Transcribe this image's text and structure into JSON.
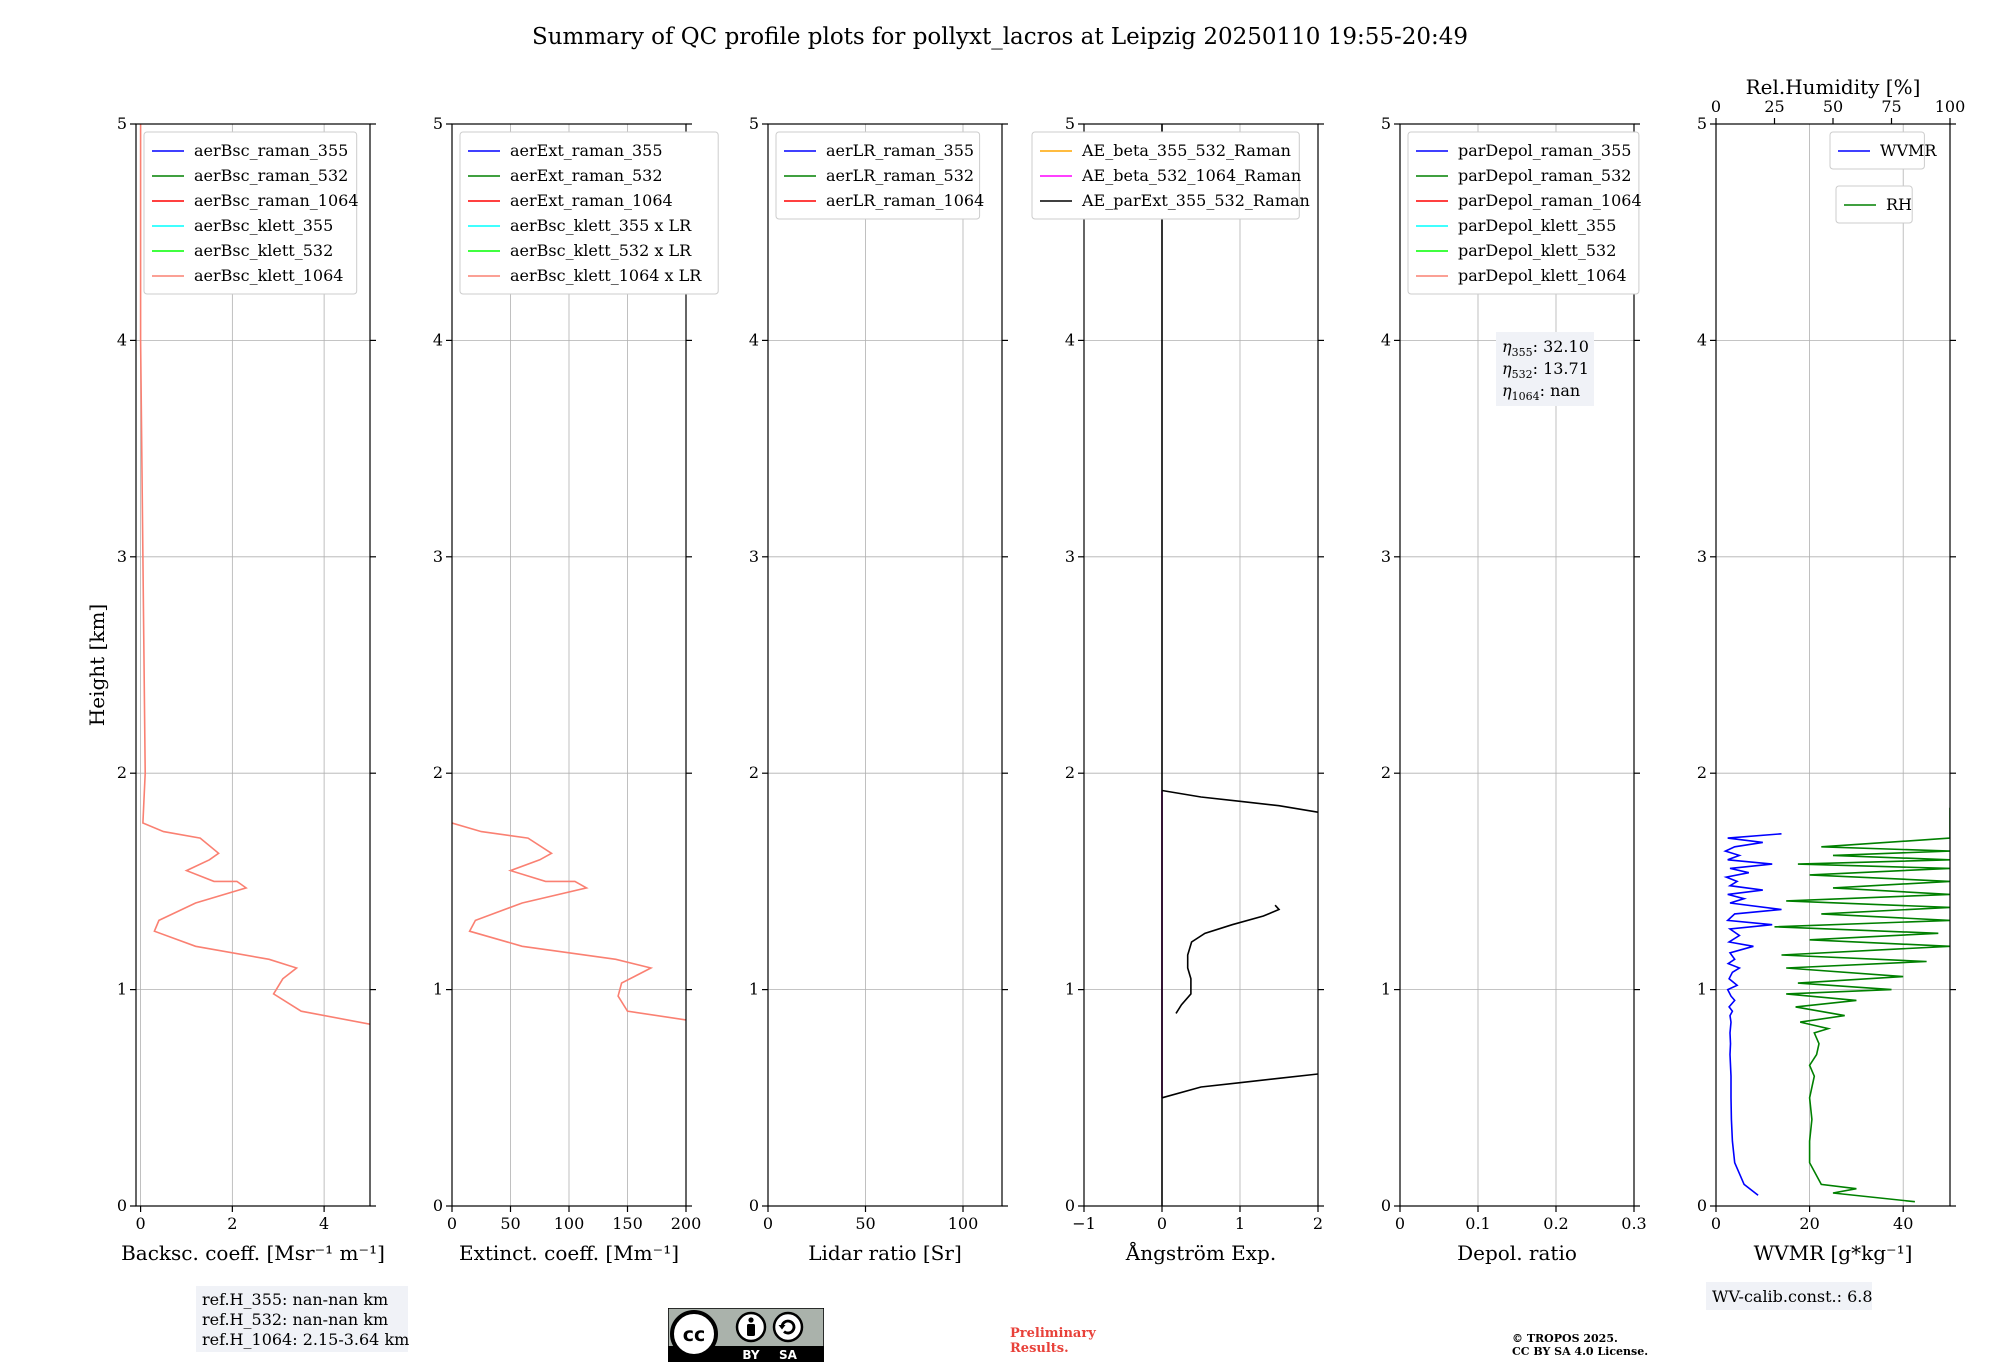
{
  "title": "Summary of QC profile plots for pollyxt_lacros at Leipzig 20250110 19:55-20:49",
  "colors": {
    "blue": "#0000ff",
    "green": "#008000",
    "red": "#ff0000",
    "cyan": "#00ffff",
    "lime": "#00ff00",
    "salmon": "#fa8072",
    "orange": "#ffa500",
    "magenta": "#ff00ff",
    "black": "#000000"
  },
  "chart_data": [
    {
      "type": "line",
      "id": "backscatter",
      "xlabel": "Backsc. coeff. [Msr⁻¹ m⁻¹]",
      "ylabel": "Height [km]",
      "xlim": [
        -0.1,
        5
      ],
      "ylim": [
        0,
        5
      ],
      "xticks": [
        0,
        2,
        4
      ],
      "yticks": [
        0,
        1,
        2,
        3,
        4,
        5
      ],
      "legend": [
        "aerBsc_raman_355",
        "aerBsc_raman_532",
        "aerBsc_raman_1064",
        "aerBsc_klett_355",
        "aerBsc_klett_532",
        "aerBsc_klett_1064"
      ],
      "legend_colors": [
        "#0000ff",
        "#008000",
        "#ff0000",
        "#00ffff",
        "#00ff00",
        "#fa8072"
      ],
      "series": [
        {
          "name": "aerBsc_klett_1064",
          "color": "#fa8072",
          "x": [
            5.0,
            3.5,
            2.9,
            3.1,
            3.4,
            2.8,
            1.2,
            0.3,
            0.4,
            1.2,
            2.3,
            2.1,
            1.6,
            1.0,
            1.5,
            1.7,
            1.3,
            0.5,
            0.05,
            0.1,
            0.05,
            0.0,
            0.0
          ],
          "y": [
            0.84,
            0.9,
            0.98,
            1.05,
            1.1,
            1.14,
            1.2,
            1.27,
            1.32,
            1.4,
            1.47,
            1.5,
            1.5,
            1.55,
            1.6,
            1.63,
            1.7,
            1.73,
            1.77,
            2.0,
            3.0,
            4.0,
            5.0
          ]
        }
      ]
    },
    {
      "type": "line",
      "id": "extinction",
      "xlabel": "Extinct. coeff. [Mm⁻¹]",
      "xlim": [
        0,
        200
      ],
      "ylim": [
        0,
        5
      ],
      "xticks": [
        0,
        50,
        100,
        150,
        200
      ],
      "yticks": [
        0,
        1,
        2,
        3,
        4,
        5
      ],
      "legend": [
        "aerExt_raman_355",
        "aerExt_raman_532",
        "aerExt_raman_1064",
        "aerBsc_klett_355 x LR",
        "aerBsc_klett_532 x LR",
        "aerBsc_klett_1064 x LR"
      ],
      "legend_colors": [
        "#0000ff",
        "#008000",
        "#ff0000",
        "#00ffff",
        "#00ff00",
        "#fa8072"
      ],
      "series": [
        {
          "name": "aerBsc_klett_1064 x LR",
          "color": "#fa8072",
          "x": [
            200,
            150,
            142,
            145,
            170,
            140,
            60,
            15,
            20,
            60,
            115,
            105,
            80,
            50,
            75,
            85,
            65,
            25,
            0
          ],
          "y": [
            0.86,
            0.9,
            0.97,
            1.03,
            1.1,
            1.14,
            1.2,
            1.27,
            1.32,
            1.4,
            1.47,
            1.5,
            1.5,
            1.55,
            1.6,
            1.63,
            1.7,
            1.73,
            1.77
          ]
        }
      ]
    },
    {
      "type": "line",
      "id": "lidar-ratio",
      "xlabel": "Lidar ratio [Sr]",
      "xlim": [
        0,
        120
      ],
      "ylim": [
        0,
        5
      ],
      "xticks": [
        0,
        50,
        100
      ],
      "yticks": [
        0,
        1,
        2,
        3,
        4,
        5
      ],
      "legend": [
        "aerLR_raman_355",
        "aerLR_raman_532",
        "aerLR_raman_1064"
      ],
      "legend_colors": [
        "#0000ff",
        "#008000",
        "#ff0000"
      ],
      "series": []
    },
    {
      "type": "line",
      "id": "angstrom",
      "xlabel": "Ångström Exp.",
      "xlim": [
        -1,
        2
      ],
      "ylim": [
        0,
        5
      ],
      "xticks": [
        -1,
        0,
        1,
        2
      ],
      "yticks": [
        0,
        1,
        2,
        3,
        4,
        5
      ],
      "legend": [
        "AE_beta_355_532_Raman",
        "AE_beta_532_1064_Raman",
        "AE_parExt_355_532_Raman"
      ],
      "legend_colors": [
        "#ffa500",
        "#ff00ff",
        "#000000"
      ],
      "series": [
        {
          "name": "AE_beta_532_1064_Raman",
          "color": "#ff00ff",
          "x": [
            0,
            0
          ],
          "y": [
            0.5,
            1.92
          ]
        },
        {
          "name": "AE_parExt_355_532_Raman",
          "color": "#000000",
          "x": [
            0,
            0
          ],
          "y": [
            0,
            5
          ]
        },
        {
          "name": "AE_parExt_355_532_Raman",
          "color": "#000000",
          "x": [
            0,
            0.5,
            1.0,
            1.5,
            2.0
          ],
          "y": [
            0.5,
            0.55,
            0.57,
            0.59,
            0.61
          ]
        },
        {
          "name": "AE_parExt_355_532_Raman",
          "color": "#000000",
          "x": [
            0,
            0.5,
            1.0,
            1.5,
            2.0
          ],
          "y": [
            1.92,
            1.89,
            1.87,
            1.85,
            1.82
          ]
        },
        {
          "name": "AE_parExt_355_532_Raman",
          "color": "#000000",
          "x": [
            0.18,
            0.25,
            0.37,
            0.37,
            0.33,
            0.33,
            0.38,
            0.55,
            0.9,
            1.3,
            1.5,
            1.45
          ],
          "y": [
            0.89,
            0.93,
            0.98,
            1.05,
            1.1,
            1.16,
            1.22,
            1.26,
            1.3,
            1.34,
            1.37,
            1.39
          ]
        }
      ]
    },
    {
      "type": "line",
      "id": "depol",
      "xlabel": "Depol. ratio",
      "xlim": [
        0,
        0.3
      ],
      "ylim": [
        0,
        5
      ],
      "xticks": [
        0.0,
        0.1,
        0.2,
        0.3
      ],
      "yticks": [
        0,
        1,
        2,
        3,
        4,
        5
      ],
      "legend": [
        "parDepol_raman_355",
        "parDepol_raman_532",
        "parDepol_raman_1064",
        "parDepol_klett_355",
        "parDepol_klett_532",
        "parDepol_klett_1064"
      ],
      "legend_colors": [
        "#0000ff",
        "#008000",
        "#ff0000",
        "#00ffff",
        "#00ff00",
        "#fa8072"
      ],
      "series": []
    },
    {
      "type": "line",
      "id": "wvmr",
      "xlabel": "WVMR [g*kg⁻¹]",
      "x2label": "Rel.Humidity [%]",
      "xlim": [
        0,
        50
      ],
      "ylim": [
        0,
        5
      ],
      "xticks": [
        0,
        20,
        40
      ],
      "yticks": [
        0,
        1,
        2,
        3,
        4,
        5
      ],
      "x2lim": [
        0,
        100
      ],
      "x2ticks": [
        0,
        25,
        50,
        75,
        100
      ],
      "legend": [
        "WVMR"
      ],
      "legend_colors": [
        "#0000ff"
      ],
      "legend2": [
        "RH"
      ],
      "legend2_colors": [
        "#008000"
      ],
      "series": [
        {
          "name": "WVMR",
          "color": "#0000ff",
          "axis": "x",
          "x": [
            9,
            6,
            4,
            3.5,
            3.3,
            3.2,
            3.2,
            3.0,
            3.1,
            3.0,
            3.2,
            3.0,
            3.5,
            2.8,
            4.0,
            3.2,
            2.5,
            4.5,
            2.8,
            3.5,
            5.0,
            2.6,
            4.0,
            3.0,
            8.0,
            2.8,
            5.0,
            3.0,
            12.0,
            2.5,
            4.0,
            14.0,
            3.0,
            6.0,
            2.5,
            10.0,
            3.0,
            4.5,
            2.2,
            7.0,
            3.0,
            12.0,
            2.5,
            5.0,
            2.0,
            4.0,
            10.0,
            2.5,
            14.0
          ],
          "y": [
            0.05,
            0.1,
            0.2,
            0.3,
            0.4,
            0.5,
            0.6,
            0.7,
            0.75,
            0.8,
            0.85,
            0.88,
            0.9,
            0.92,
            0.95,
            0.97,
            1.0,
            1.02,
            1.05,
            1.08,
            1.1,
            1.12,
            1.14,
            1.17,
            1.2,
            1.22,
            1.25,
            1.28,
            1.3,
            1.32,
            1.35,
            1.37,
            1.4,
            1.42,
            1.44,
            1.46,
            1.48,
            1.5,
            1.52,
            1.54,
            1.56,
            1.58,
            1.6,
            1.62,
            1.64,
            1.66,
            1.68,
            1.7,
            1.72
          ]
        },
        {
          "name": "RH",
          "color": "#008000",
          "axis": "x2",
          "x": [
            85,
            50,
            60,
            45,
            40,
            40,
            41,
            40,
            42,
            40,
            43,
            44,
            42,
            48,
            36,
            55,
            34,
            60,
            30,
            75,
            35,
            80,
            30,
            90,
            28,
            100,
            40,
            95,
            25,
            100,
            45,
            100,
            30,
            100,
            50,
            100,
            40,
            100,
            35,
            100,
            50,
            100,
            45,
            100,
            100
          ],
          "y": [
            0.02,
            0.06,
            0.08,
            0.1,
            0.2,
            0.3,
            0.4,
            0.5,
            0.6,
            0.65,
            0.7,
            0.75,
            0.8,
            0.82,
            0.85,
            0.88,
            0.92,
            0.95,
            0.98,
            1.0,
            1.03,
            1.06,
            1.1,
            1.13,
            1.16,
            1.2,
            1.23,
            1.26,
            1.29,
            1.32,
            1.35,
            1.38,
            1.41,
            1.44,
            1.47,
            1.5,
            1.53,
            1.56,
            1.58,
            1.6,
            1.62,
            1.64,
            1.66,
            1.7,
            1.84
          ]
        }
      ]
    }
  ],
  "annotations": {
    "ref_h": [
      "ref.H_355: nan-nan km",
      "ref.H_532: nan-nan km",
      "ref.H_1064: 2.15-3.64 km"
    ],
    "eta_labels": [
      "η",
      "η",
      "η"
    ],
    "eta_subs": [
      "355",
      "532",
      "1064"
    ],
    "eta_values": [
      ": 32.10",
      ": 13.71",
      ": nan"
    ],
    "wv_calib": "WV-calib.const.: 6.8",
    "preliminary": [
      "Preliminary",
      "Results."
    ],
    "copyright": [
      "© TROPOS 2025.",
      "CC BY SA 4.0 License."
    ],
    "cc_by": "BY",
    "cc_sa": "SA"
  }
}
